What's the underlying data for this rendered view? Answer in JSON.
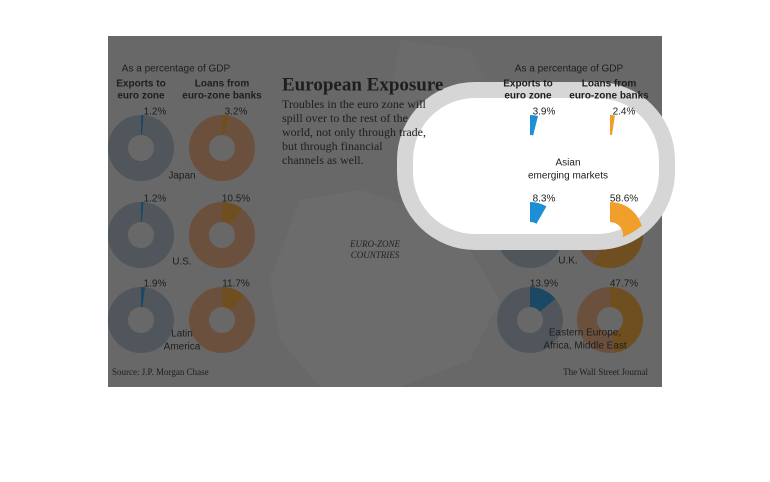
{
  "header": {
    "gdp_note": "As a percentage of GDP",
    "title": "European Exposure",
    "description": [
      "Troubles in the euro zone will",
      "spill over to the rest of the",
      "world, not only through trade,",
      "but through financial",
      "channels as well."
    ],
    "map_label": [
      "EURO-ZONE",
      "COUNTRIES"
    ],
    "source": "Source: J.P. Morgan Chase",
    "credit": "The Wall Street Journal"
  },
  "legend": {
    "exports": [
      "Exports to",
      "euro zone"
    ],
    "loans": [
      "Loans from",
      "euro-zone banks"
    ]
  },
  "chart_data": [
    {
      "type": "pie",
      "title": [
        "Japan"
      ],
      "series": [
        {
          "color": "#1c8fd6",
          "values": [
            1.2
          ],
          "value_labels": [
            "1.2%"
          ]
        },
        {
          "color": "#f0a02a",
          "values": [
            3.2
          ],
          "value_labels": [
            "3.2%"
          ]
        }
      ]
    },
    {
      "type": "pie",
      "title": [
        "U.S."
      ],
      "series": [
        {
          "color": "#1c8fd6",
          "values": [
            1.2
          ],
          "value_labels": [
            "1.2%"
          ]
        },
        {
          "color": "#f0a02a",
          "values": [
            10.5
          ],
          "value_labels": [
            "10.5%"
          ]
        }
      ]
    },
    {
      "type": "pie",
      "title": [
        "Latin",
        "America"
      ],
      "series": [
        {
          "color": "#1c8fd6",
          "values": [
            1.9
          ],
          "value_labels": [
            "1.9%"
          ]
        },
        {
          "color": "#f0a02a",
          "values": [
            11.7
          ],
          "value_labels": [
            "11.7%"
          ]
        }
      ]
    },
    {
      "type": "pie",
      "title": [
        "Asian",
        "emerging markets"
      ],
      "series": [
        {
          "color": "#1c8fd6",
          "values": [
            3.9
          ],
          "value_labels": [
            "3.9%"
          ]
        },
        {
          "color": "#f0a02a",
          "values": [
            2.4
          ],
          "value_labels": [
            "2.4%"
          ]
        }
      ]
    },
    {
      "type": "pie",
      "title": [
        "U.K."
      ],
      "series": [
        {
          "color": "#1c8fd6",
          "values": [
            8.3
          ],
          "value_labels": [
            "8.3%"
          ]
        },
        {
          "color": "#f0a02a",
          "values": [
            58.6
          ],
          "value_labels": [
            "58.6%"
          ]
        }
      ]
    },
    {
      "type": "pie",
      "title": [
        "Eastern Europe,",
        "Africa, Middle East"
      ],
      "series": [
        {
          "color": "#1c8fd6",
          "values": [
            13.9
          ],
          "value_labels": [
            "13.9%"
          ]
        },
        {
          "color": "#f0a02a",
          "values": [
            47.7
          ],
          "value_labels": [
            "47.7%"
          ]
        }
      ]
    }
  ]
}
